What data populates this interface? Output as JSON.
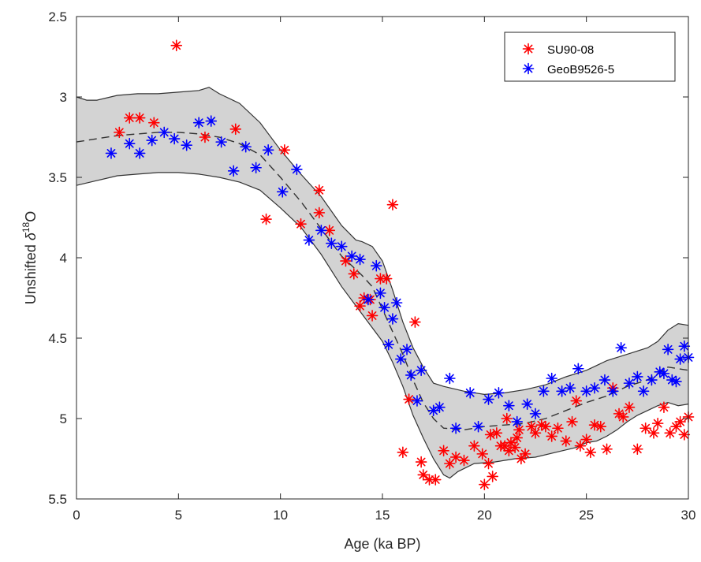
{
  "chart_data": {
    "type": "scatter",
    "xlabel": "Age (ka BP)",
    "ylabel_main": "Unshifted ",
    "ylabel_delta": "δ",
    "ylabel_sup": "18",
    "ylabel_tail": "O",
    "xlim": [
      0,
      30
    ],
    "ylim": [
      2.5,
      5.5
    ],
    "y_reversed": true,
    "xticks": [
      0,
      5,
      10,
      15,
      20,
      25,
      30
    ],
    "yticks": [
      2.5,
      3,
      3.5,
      4,
      4.5,
      5,
      5.5
    ],
    "xtick_labels": [
      "0",
      "5",
      "10",
      "15",
      "20",
      "25",
      "30"
    ],
    "ytick_labels": [
      "2.5",
      "3",
      "3.5",
      "4",
      "4.5",
      "5",
      "5.5"
    ],
    "grid": false,
    "legend_position": "top-right",
    "envelope": {
      "fill_color": "#d3d3d3",
      "edge_color": "#333333",
      "upper": [
        [
          0,
          3.0
        ],
        [
          0.5,
          3.02
        ],
        [
          1,
          3.02
        ],
        [
          2,
          2.99
        ],
        [
          3,
          2.98
        ],
        [
          4,
          2.98
        ],
        [
          5,
          2.97
        ],
        [
          6,
          2.96
        ],
        [
          6.5,
          2.94
        ],
        [
          7,
          2.98
        ],
        [
          8,
          3.04
        ],
        [
          9,
          3.16
        ],
        [
          10,
          3.33
        ],
        [
          11,
          3.48
        ],
        [
          12,
          3.62
        ],
        [
          13,
          3.8
        ],
        [
          13.7,
          3.89
        ],
        [
          14,
          3.9
        ],
        [
          14.5,
          3.93
        ],
        [
          15,
          4.02
        ],
        [
          15.5,
          4.2
        ],
        [
          16,
          4.4
        ],
        [
          16.5,
          4.56
        ],
        [
          17,
          4.68
        ],
        [
          17.5,
          4.78
        ],
        [
          18,
          4.8
        ],
        [
          19,
          4.83
        ],
        [
          20,
          4.85
        ],
        [
          21,
          4.84
        ],
        [
          22,
          4.82
        ],
        [
          23,
          4.79
        ],
        [
          24,
          4.74
        ],
        [
          25,
          4.7
        ],
        [
          26,
          4.64
        ],
        [
          27,
          4.6
        ],
        [
          28,
          4.56
        ],
        [
          28.5,
          4.52
        ],
        [
          29,
          4.45
        ],
        [
          29.5,
          4.41
        ],
        [
          30,
          4.42
        ]
      ],
      "lower": [
        [
          0,
          3.55
        ],
        [
          1,
          3.52
        ],
        [
          2,
          3.49
        ],
        [
          3,
          3.48
        ],
        [
          4,
          3.47
        ],
        [
          5,
          3.47
        ],
        [
          6,
          3.48
        ],
        [
          7,
          3.5
        ],
        [
          8,
          3.53
        ],
        [
          9,
          3.58
        ],
        [
          10,
          3.69
        ],
        [
          11,
          3.81
        ],
        [
          12,
          3.98
        ],
        [
          13,
          4.18
        ],
        [
          14,
          4.35
        ],
        [
          15,
          4.52
        ],
        [
          15.5,
          4.65
        ],
        [
          16,
          4.8
        ],
        [
          16.5,
          4.98
        ],
        [
          17,
          5.12
        ],
        [
          17.5,
          5.25
        ],
        [
          18,
          5.35
        ],
        [
          18.3,
          5.37
        ],
        [
          18.7,
          5.33
        ],
        [
          19.5,
          5.28
        ],
        [
          20.5,
          5.27
        ],
        [
          21.5,
          5.25
        ],
        [
          22.5,
          5.24
        ],
        [
          23.5,
          5.21
        ],
        [
          24.5,
          5.18
        ],
        [
          25,
          5.15
        ],
        [
          25.5,
          5.14
        ],
        [
          26,
          5.11
        ],
        [
          26.5,
          5.07
        ],
        [
          27,
          5.02
        ],
        [
          27.5,
          4.98
        ],
        [
          28.5,
          4.92
        ],
        [
          29,
          4.9
        ],
        [
          29.5,
          4.92
        ],
        [
          30,
          4.91
        ]
      ],
      "mean": [
        [
          0,
          3.28
        ],
        [
          1,
          3.26
        ],
        [
          2,
          3.24
        ],
        [
          3,
          3.23
        ],
        [
          4,
          3.22
        ],
        [
          5,
          3.22
        ],
        [
          6,
          3.23
        ],
        [
          7,
          3.25
        ],
        [
          8,
          3.29
        ],
        [
          9,
          3.36
        ],
        [
          10,
          3.5
        ],
        [
          11,
          3.65
        ],
        [
          12,
          3.82
        ],
        [
          13,
          3.99
        ],
        [
          14,
          4.11
        ],
        [
          14.5,
          4.18
        ],
        [
          15,
          4.32
        ],
        [
          15.5,
          4.46
        ],
        [
          16,
          4.6
        ],
        [
          16.5,
          4.76
        ],
        [
          17,
          4.9
        ],
        [
          17.5,
          5.0
        ],
        [
          18,
          5.06
        ],
        [
          19,
          5.07
        ],
        [
          20,
          5.05
        ],
        [
          21,
          5.04
        ],
        [
          22,
          5.03
        ],
        [
          23,
          5.0
        ],
        [
          24,
          4.95
        ],
        [
          25,
          4.9
        ],
        [
          26,
          4.86
        ],
        [
          27,
          4.8
        ],
        [
          28,
          4.76
        ],
        [
          28.5,
          4.72
        ],
        [
          29,
          4.68
        ],
        [
          30,
          4.7
        ]
      ]
    },
    "series": [
      {
        "name": "SU90-08",
        "color": "#ff0000",
        "points": [
          [
            4.9,
            2.68
          ],
          [
            2.1,
            3.22
          ],
          [
            2.6,
            3.13
          ],
          [
            3.1,
            3.13
          ],
          [
            3.8,
            3.16
          ],
          [
            6.3,
            3.25
          ],
          [
            7.8,
            3.2
          ],
          [
            9.3,
            3.76
          ],
          [
            10.2,
            3.33
          ],
          [
            11.0,
            3.79
          ],
          [
            11.9,
            3.58
          ],
          [
            11.9,
            3.72
          ],
          [
            12.4,
            3.83
          ],
          [
            13.2,
            4.02
          ],
          [
            13.6,
            4.1
          ],
          [
            13.9,
            4.3
          ],
          [
            14.1,
            4.25
          ],
          [
            14.5,
            4.36
          ],
          [
            14.4,
            4.26
          ],
          [
            14.9,
            4.13
          ],
          [
            15.2,
            4.13
          ],
          [
            15.5,
            3.67
          ],
          [
            16.0,
            5.21
          ],
          [
            16.3,
            4.88
          ],
          [
            16.6,
            4.4
          ],
          [
            16.9,
            5.27
          ],
          [
            17.0,
            5.35
          ],
          [
            17.3,
            5.38
          ],
          [
            17.6,
            5.38
          ],
          [
            18.0,
            5.2
          ],
          [
            18.3,
            5.28
          ],
          [
            18.6,
            5.24
          ],
          [
            19.0,
            5.26
          ],
          [
            19.5,
            5.17
          ],
          [
            19.9,
            5.22
          ],
          [
            20.0,
            5.41
          ],
          [
            20.2,
            5.28
          ],
          [
            20.4,
            5.36
          ],
          [
            20.3,
            5.1
          ],
          [
            20.6,
            5.09
          ],
          [
            20.8,
            5.17
          ],
          [
            21.0,
            5.17
          ],
          [
            21.1,
            5.0
          ],
          [
            21.2,
            5.2
          ],
          [
            21.3,
            5.15
          ],
          [
            21.5,
            5.18
          ],
          [
            21.6,
            5.12
          ],
          [
            21.7,
            5.07
          ],
          [
            21.8,
            5.25
          ],
          [
            22.0,
            5.22
          ],
          [
            22.3,
            5.05
          ],
          [
            22.5,
            5.09
          ],
          [
            22.8,
            5.04
          ],
          [
            23.0,
            5.05
          ],
          [
            23.3,
            5.11
          ],
          [
            23.6,
            5.06
          ],
          [
            24.0,
            5.14
          ],
          [
            24.3,
            5.02
          ],
          [
            24.5,
            4.89
          ],
          [
            24.7,
            5.17
          ],
          [
            25.0,
            5.13
          ],
          [
            25.2,
            5.21
          ],
          [
            25.4,
            5.04
          ],
          [
            25.7,
            5.05
          ],
          [
            26.0,
            5.19
          ],
          [
            26.3,
            4.81
          ],
          [
            26.6,
            4.97
          ],
          [
            26.8,
            4.99
          ],
          [
            27.1,
            4.93
          ],
          [
            27.5,
            5.19
          ],
          [
            27.9,
            5.06
          ],
          [
            28.3,
            5.09
          ],
          [
            28.5,
            5.03
          ],
          [
            28.8,
            4.93
          ],
          [
            29.1,
            5.09
          ],
          [
            29.4,
            5.05
          ],
          [
            29.6,
            5.02
          ],
          [
            29.8,
            5.1
          ],
          [
            30.0,
            4.99
          ]
        ]
      },
      {
        "name": "GeoB9526-5",
        "color": "#0000ff",
        "points": [
          [
            1.7,
            3.35
          ],
          [
            2.6,
            3.29
          ],
          [
            3.1,
            3.35
          ],
          [
            3.7,
            3.27
          ],
          [
            4.3,
            3.22
          ],
          [
            4.8,
            3.26
          ],
          [
            5.4,
            3.3
          ],
          [
            6.0,
            3.16
          ],
          [
            6.6,
            3.15
          ],
          [
            7.1,
            3.28
          ],
          [
            7.7,
            3.46
          ],
          [
            8.3,
            3.31
          ],
          [
            8.8,
            3.44
          ],
          [
            9.4,
            3.33
          ],
          [
            10.1,
            3.59
          ],
          [
            10.8,
            3.45
          ],
          [
            11.4,
            3.89
          ],
          [
            12.0,
            3.83
          ],
          [
            12.5,
            3.91
          ],
          [
            13.0,
            3.93
          ],
          [
            13.5,
            3.99
          ],
          [
            13.9,
            4.01
          ],
          [
            14.3,
            4.26
          ],
          [
            14.7,
            4.05
          ],
          [
            14.9,
            4.22
          ],
          [
            15.1,
            4.31
          ],
          [
            15.3,
            4.54
          ],
          [
            15.5,
            4.38
          ],
          [
            15.7,
            4.28
          ],
          [
            15.9,
            4.63
          ],
          [
            16.2,
            4.57
          ],
          [
            16.4,
            4.73
          ],
          [
            16.7,
            4.89
          ],
          [
            16.9,
            4.7
          ],
          [
            17.5,
            4.95
          ],
          [
            17.8,
            4.93
          ],
          [
            18.3,
            4.75
          ],
          [
            18.6,
            5.06
          ],
          [
            19.3,
            4.84
          ],
          [
            19.7,
            5.05
          ],
          [
            20.2,
            4.88
          ],
          [
            20.7,
            4.84
          ],
          [
            21.2,
            4.92
          ],
          [
            21.6,
            5.02
          ],
          [
            22.1,
            4.91
          ],
          [
            22.5,
            4.97
          ],
          [
            22.9,
            4.83
          ],
          [
            23.3,
            4.75
          ],
          [
            23.8,
            4.83
          ],
          [
            24.2,
            4.81
          ],
          [
            24.6,
            4.69
          ],
          [
            25.0,
            4.83
          ],
          [
            25.4,
            4.81
          ],
          [
            25.9,
            4.76
          ],
          [
            26.3,
            4.83
          ],
          [
            26.7,
            4.56
          ],
          [
            27.1,
            4.78
          ],
          [
            27.5,
            4.74
          ],
          [
            27.8,
            4.83
          ],
          [
            28.2,
            4.76
          ],
          [
            28.6,
            4.71
          ],
          [
            28.8,
            4.72
          ],
          [
            29.0,
            4.57
          ],
          [
            29.2,
            4.76
          ],
          [
            29.4,
            4.77
          ],
          [
            29.6,
            4.63
          ],
          [
            29.8,
            4.55
          ],
          [
            30.0,
            4.62
          ]
        ]
      }
    ]
  }
}
